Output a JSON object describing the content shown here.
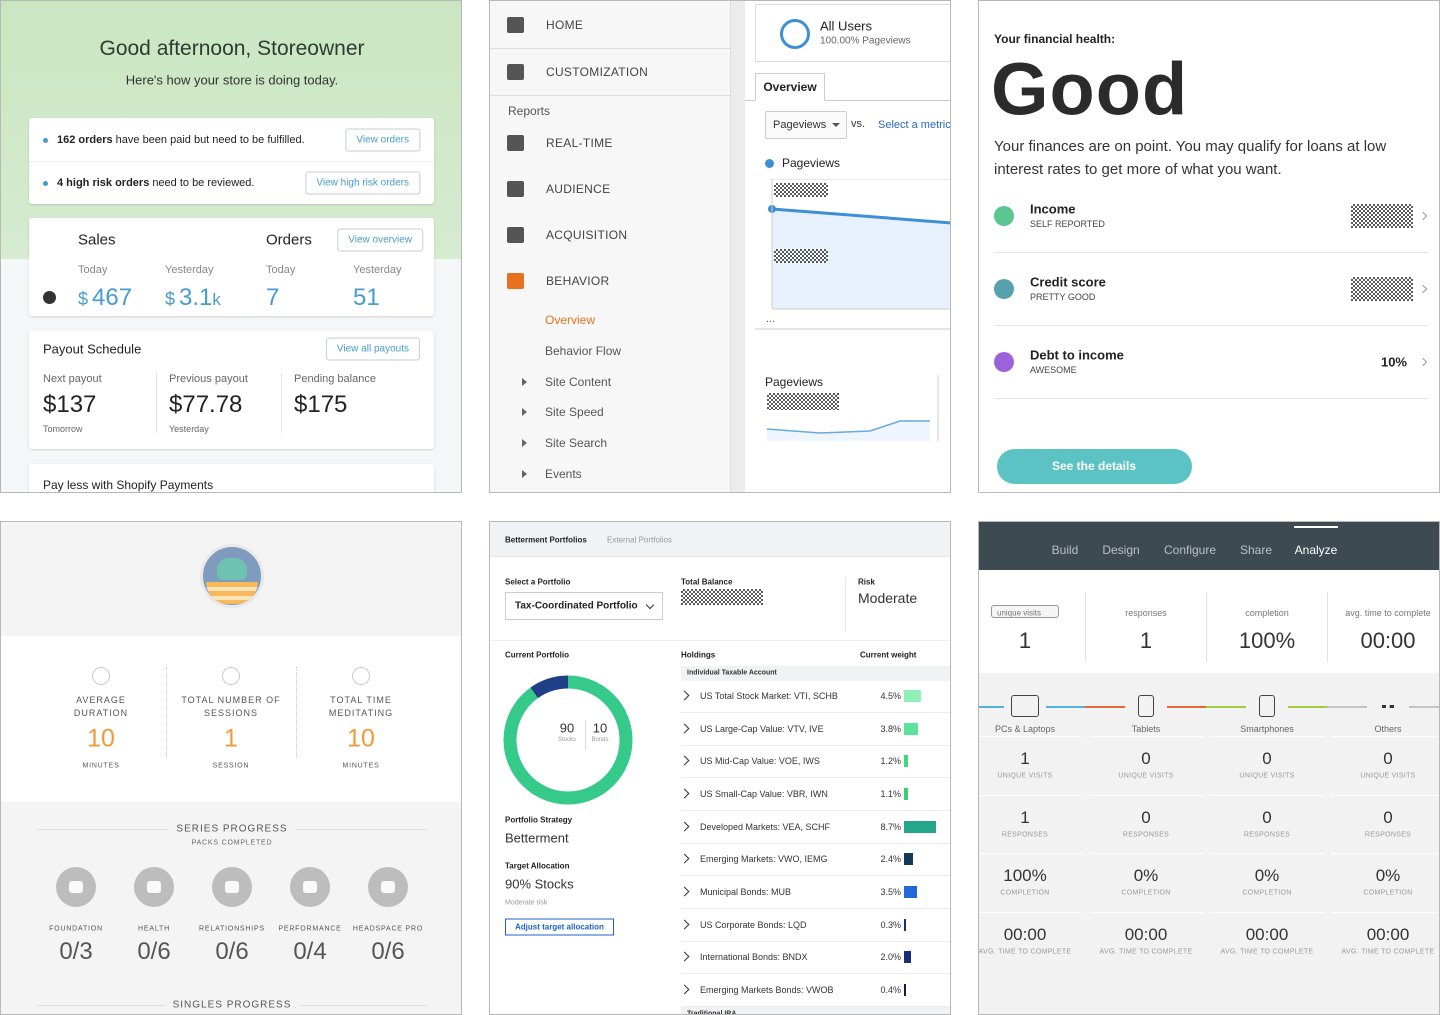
{
  "shopify": {
    "greeting": "Good afternoon, Storeowner",
    "subtitle": "Here's how your store is doing today.",
    "alerts": [
      {
        "count": "162 orders",
        "text": "have been paid but need to be fulfilled.",
        "button": "View orders"
      },
      {
        "count": "4 high risk orders",
        "text": "need to be reviewed.",
        "button": "View high risk orders"
      }
    ],
    "currency": "$",
    "sales": {
      "title": "Sales",
      "stats": [
        {
          "label": "Today",
          "value": "467"
        },
        {
          "label": "Yesterday",
          "value": "3.1",
          "suffix": "k"
        }
      ]
    },
    "orders": {
      "title": "Orders",
      "button": "View overview",
      "stats": [
        {
          "label": "Today",
          "value": "7"
        },
        {
          "label": "Yesterday",
          "value": "51"
        }
      ]
    },
    "payout": {
      "title": "Payout Schedule",
      "button": "View all payouts",
      "items": [
        {
          "label": "Next payout",
          "amount": "$137",
          "note": "Tomorrow"
        },
        {
          "label": "Previous payout",
          "amount": "$77.78",
          "note": "Yesterday"
        },
        {
          "label": "Pending balance",
          "amount": "$175"
        }
      ]
    },
    "promo": "Pay less with Shopify Payments"
  },
  "analytics": {
    "top_nav": [
      "HOME",
      "CUSTOMIZATION"
    ],
    "section": "Reports",
    "nav": [
      "REAL-TIME",
      "AUDIENCE",
      "ACQUISITION",
      "BEHAVIOR"
    ],
    "sub_nav": [
      {
        "label": "Overview"
      },
      {
        "label": "Behavior Flow"
      },
      {
        "label": "Site Content",
        "expandable": true
      },
      {
        "label": "Site Speed",
        "expandable": true
      },
      {
        "label": "Site Search",
        "expandable": true
      },
      {
        "label": "Events",
        "expandable": true
      }
    ],
    "segment": {
      "name": "All Users",
      "detail": "100.00% Pageviews"
    },
    "tab": "Overview",
    "metric": "Pageviews",
    "vs": "vs.",
    "compare": "Select a metric",
    "legend": "Pageviews",
    "more": "...",
    "sparkline_label": "Pageviews"
  },
  "karma": {
    "heading": "Your financial health:",
    "rating": "Good",
    "description": "Your finances are on point. You may qualify for loans at low interest rates to get more of what you want.",
    "items": [
      {
        "title": "Income",
        "subtitle": "SELF REPORTED",
        "color": "#3dbb7e"
      },
      {
        "title": "Credit score",
        "subtitle": "PRETTY GOOD",
        "color": "#39939f"
      },
      {
        "title": "Debt to income",
        "subtitle": "AWESOME",
        "value": "10%",
        "color": "#8b46d6"
      }
    ],
    "button": "See the details"
  },
  "headspace": {
    "stats": [
      {
        "label": "AVERAGE DURATION",
        "value": "10",
        "unit": "MINUTES"
      },
      {
        "label": "TOTAL NUMBER OF SESSIONS",
        "value": "1",
        "unit": "SESSION"
      },
      {
        "label": "TOTAL TIME MEDITATING",
        "value": "10",
        "unit": "MINUTES"
      }
    ],
    "series_title": "SERIES PROGRESS",
    "series_subtitle": "PACKS COMPLETED",
    "packs": [
      {
        "name": "FOUNDATION",
        "progress": "0/3"
      },
      {
        "name": "HEALTH",
        "progress": "0/6"
      },
      {
        "name": "RELATIONSHIPS",
        "progress": "0/6"
      },
      {
        "name": "PERFORMANCE",
        "progress": "0/4"
      },
      {
        "name": "HEADSPACE PRO",
        "progress": "0/6"
      }
    ],
    "singles_title": "SINGLES PROGRESS"
  },
  "betterment": {
    "tabs": [
      "Betterment Portfolios",
      "External Portfolios"
    ],
    "select_label": "Select a Portfolio",
    "portfolio": "Tax-Coordinated Portfolio",
    "balance_label": "Total Balance",
    "risk_label": "Risk",
    "risk": "Moderate",
    "current_label": "Current Portfolio",
    "allocation": [
      {
        "value": 90,
        "label": "Stocks",
        "color": "#35c98a"
      },
      {
        "value": 10,
        "label": "Bonds",
        "color": "#1f3f86"
      }
    ],
    "strategy_label": "Portfolio Strategy",
    "strategy": "Betterment",
    "target_label": "Target Allocation",
    "target": "90% Stocks",
    "target_risk": "Moderate risk",
    "adjust": "Adjust target allocation",
    "holdings_label": "Holdings",
    "weight_label": "Current weight",
    "account": "Individual Taxable Account",
    "holdings": [
      {
        "name": "US Total Stock Market: VTI, SCHB",
        "weight": 4.5,
        "weight_label": "4.5%",
        "color": "#8ff0b8"
      },
      {
        "name": "US Large-Cap Value: VTV, IVE",
        "weight": 3.8,
        "weight_label": "3.8%",
        "color": "#5be39b"
      },
      {
        "name": "US Mid-Cap Value: VOE, IWS",
        "weight": 1.2,
        "weight_label": "1.2%",
        "color": "#3fd87f"
      },
      {
        "name": "US Small-Cap Value: VBR, IWN",
        "weight": 1.1,
        "weight_label": "1.1%",
        "color": "#3ccf76"
      },
      {
        "name": "Developed Markets: VEA, SCHF",
        "weight": 8.7,
        "weight_label": "8.7%",
        "color": "#25a58a"
      },
      {
        "name": "Emerging Markets: VWO, IEMG",
        "weight": 2.4,
        "weight_label": "2.4%",
        "color": "#123a58"
      },
      {
        "name": "Municipal Bonds: MUB",
        "weight": 3.5,
        "weight_label": "3.5%",
        "color": "#2368d8"
      },
      {
        "name": "US Corporate Bonds: LQD",
        "weight": 0.3,
        "weight_label": "0.3%",
        "color": "#1c2e7a"
      },
      {
        "name": "International Bonds: BNDX",
        "weight": 2.0,
        "weight_label": "2.0%",
        "color": "#1b2d78"
      },
      {
        "name": "Emerging Markets Bonds: VWOB",
        "weight": 0.4,
        "weight_label": "0.4%",
        "color": "#1a1a40"
      }
    ],
    "account_2": "Traditional IRA"
  },
  "typeform": {
    "tabs": [
      "Build",
      "Design",
      "Configure",
      "Share",
      "Analyze"
    ],
    "active_tab": 4,
    "summary": [
      {
        "label": "unique visits",
        "value": "1"
      },
      {
        "label": "responses",
        "value": "1"
      },
      {
        "label": "completion",
        "value": "100%"
      },
      {
        "label": "avg. time to complete",
        "value": "00:00"
      }
    ],
    "metric_labels": [
      "UNIQUE VISITS",
      "RESPONSES",
      "COMPLETION",
      "AVG. TIME TO COMPLETE"
    ],
    "devices": [
      {
        "name": "PCs & Laptops",
        "color": "#4fb3e3",
        "metrics": [
          "1",
          "1",
          "100%",
          "00:00"
        ]
      },
      {
        "name": "Tablets",
        "color": "#e8643a",
        "metrics": [
          "0",
          "0",
          "0%",
          "00:00"
        ]
      },
      {
        "name": "Smartphones",
        "color": "#9fcd3d",
        "metrics": [
          "0",
          "0",
          "0%",
          "00:00"
        ]
      },
      {
        "name": "Others",
        "color": "#c4c4c4",
        "metrics": [
          "0",
          "0",
          "0%",
          "00:00"
        ]
      }
    ]
  }
}
